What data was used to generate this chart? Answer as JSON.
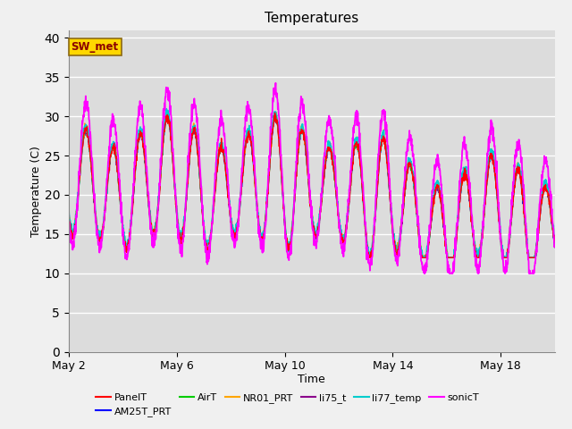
{
  "title": "Temperatures",
  "xlabel": "Time",
  "ylabel": "Temperature (C)",
  "ylim": [
    0,
    41
  ],
  "yticks": [
    0,
    5,
    10,
    15,
    20,
    25,
    30,
    35,
    40
  ],
  "annotation_text": "SW_met",
  "annotation_color": "#8B0000",
  "annotation_bg": "#FFD700",
  "annotation_border": "#8B6914",
  "series_colors": {
    "PanelT": "#FF0000",
    "AM25T_PRT": "#0000FF",
    "AirT": "#00CC00",
    "NR01_PRT": "#FFA500",
    "li75_t": "#8B008B",
    "li77_temp": "#00CCCC",
    "sonicT": "#FF00FF"
  },
  "xtick_labels": [
    "May 2",
    "May 6",
    "May 10",
    "May 14",
    "May 18"
  ],
  "xtick_pos": [
    0,
    4,
    8,
    12,
    16
  ],
  "bg_color": "#DCDCDC",
  "fig_bg_color": "#F0F0F0"
}
